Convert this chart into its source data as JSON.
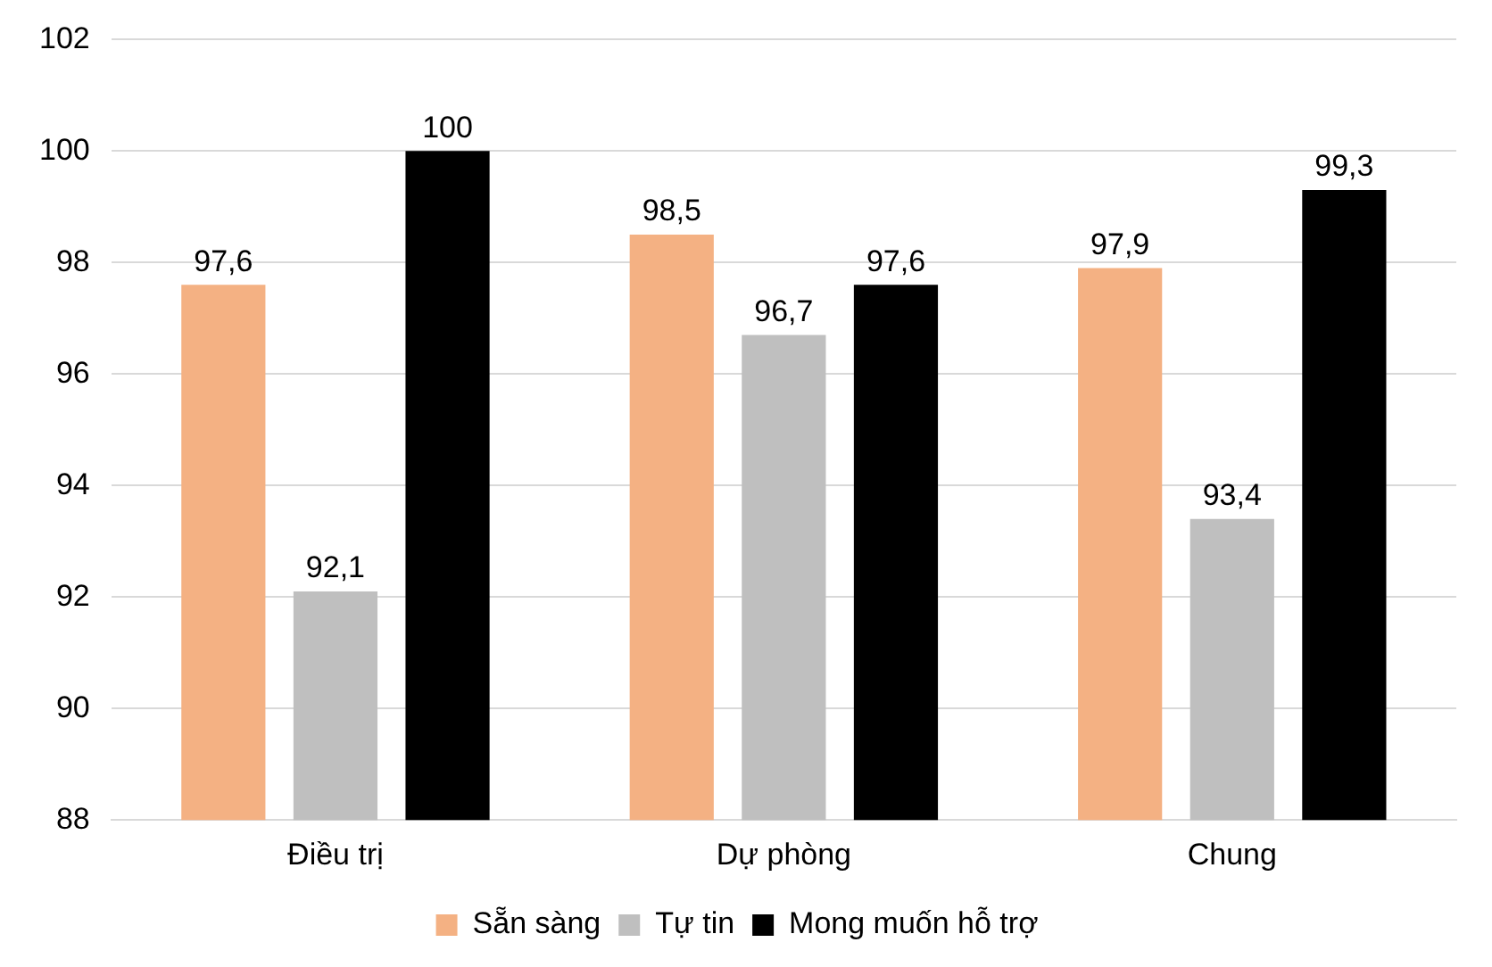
{
  "chart_data": {
    "type": "bar",
    "categories": [
      "Điều trị",
      "Dự phòng",
      "Chung"
    ],
    "series": [
      {
        "name": "Sẵn sàng",
        "color": "#f4b183",
        "values": [
          97.6,
          98.5,
          97.9
        ],
        "value_labels": [
          "97,6",
          "98,5",
          "97,9"
        ]
      },
      {
        "name": "Tự tin",
        "color": "#bfbfbf",
        "values": [
          92.1,
          96.7,
          93.4
        ],
        "value_labels": [
          "92,1",
          "96,7",
          "93,4"
        ]
      },
      {
        "name": "Mong muốn hỗ trợ",
        "color": "#000000",
        "values": [
          100,
          97.6,
          99.3
        ],
        "value_labels": [
          "100",
          "97,6",
          "99,3"
        ]
      }
    ],
    "ylim": [
      88,
      102
    ],
    "yticks": [
      88,
      90,
      92,
      94,
      96,
      98,
      100,
      102
    ],
    "grid": "y",
    "legend": "bottom"
  }
}
